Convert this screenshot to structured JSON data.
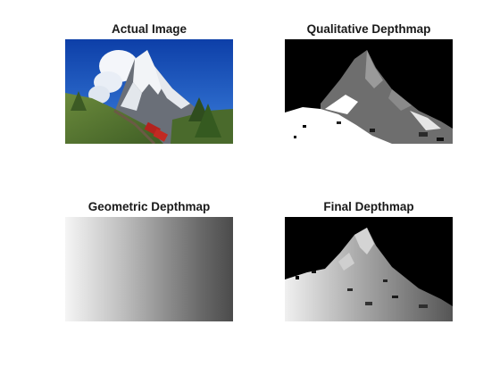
{
  "figure": {
    "panels": [
      {
        "id": "actual",
        "title": "Actual Image"
      },
      {
        "id": "qualitative",
        "title": "Qualitative Depthmap"
      },
      {
        "id": "geometric",
        "title": "Geometric Depthmap"
      },
      {
        "id": "final",
        "title": "Final Depthmap"
      }
    ]
  }
}
